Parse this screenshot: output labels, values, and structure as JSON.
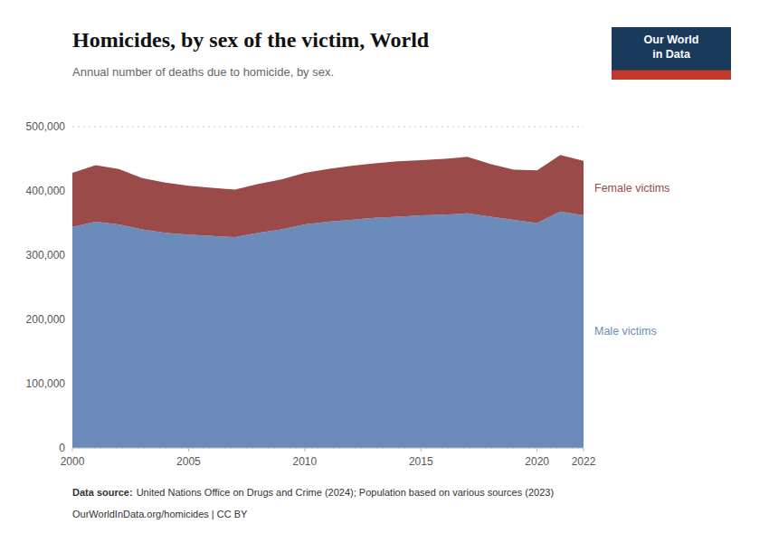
{
  "chart_data": {
    "type": "area",
    "stacked": true,
    "title": "Homicides, by sex of the victim, World",
    "subtitle": "Annual number of deaths due to homicide, by sex.",
    "x": [
      2000,
      2001,
      2002,
      2003,
      2004,
      2005,
      2006,
      2007,
      2008,
      2009,
      2010,
      2011,
      2012,
      2013,
      2014,
      2015,
      2016,
      2017,
      2018,
      2019,
      2020,
      2021,
      2022
    ],
    "series": [
      {
        "name": "Male victims",
        "color": "#6b8cba",
        "values": [
          344000,
          352000,
          348000,
          340000,
          335000,
          332000,
          330000,
          328000,
          335000,
          340000,
          348000,
          352000,
          355000,
          358000,
          360000,
          362000,
          363000,
          365000,
          360000,
          355000,
          350000,
          368000,
          362000
        ]
      },
      {
        "name": "Female victims",
        "color": "#9b4a4a",
        "values": [
          84000,
          88000,
          86000,
          80000,
          78000,
          76000,
          75000,
          74000,
          76000,
          78000,
          80000,
          82000,
          84000,
          85000,
          86000,
          86000,
          87000,
          88000,
          82000,
          78000,
          82000,
          88000,
          85000
        ]
      }
    ],
    "xlim": [
      2000,
      2022
    ],
    "xticks": [
      2000,
      2005,
      2010,
      2015,
      2020,
      2022
    ],
    "ylim": [
      0,
      500000
    ],
    "yticks": [
      0,
      {
        "value": 100000,
        "label": "100,000"
      },
      {
        "value": 200000,
        "label": "200,000"
      },
      {
        "value": 300000,
        "label": "300,000"
      },
      {
        "value": 400000,
        "label": "400,000"
      },
      {
        "value": 500000,
        "label": "500,000"
      }
    ],
    "grid": true,
    "source_label": "Data source:",
    "source": "United Nations Office on Drugs and Crime (2024); Population based on various sources (2023)",
    "url": "OurWorldInData.org/homicides | CC BY",
    "logo": {
      "text": [
        "Our World",
        "in Data"
      ],
      "colors": [
        "#1a3a5c",
        "#c0392b"
      ]
    }
  }
}
